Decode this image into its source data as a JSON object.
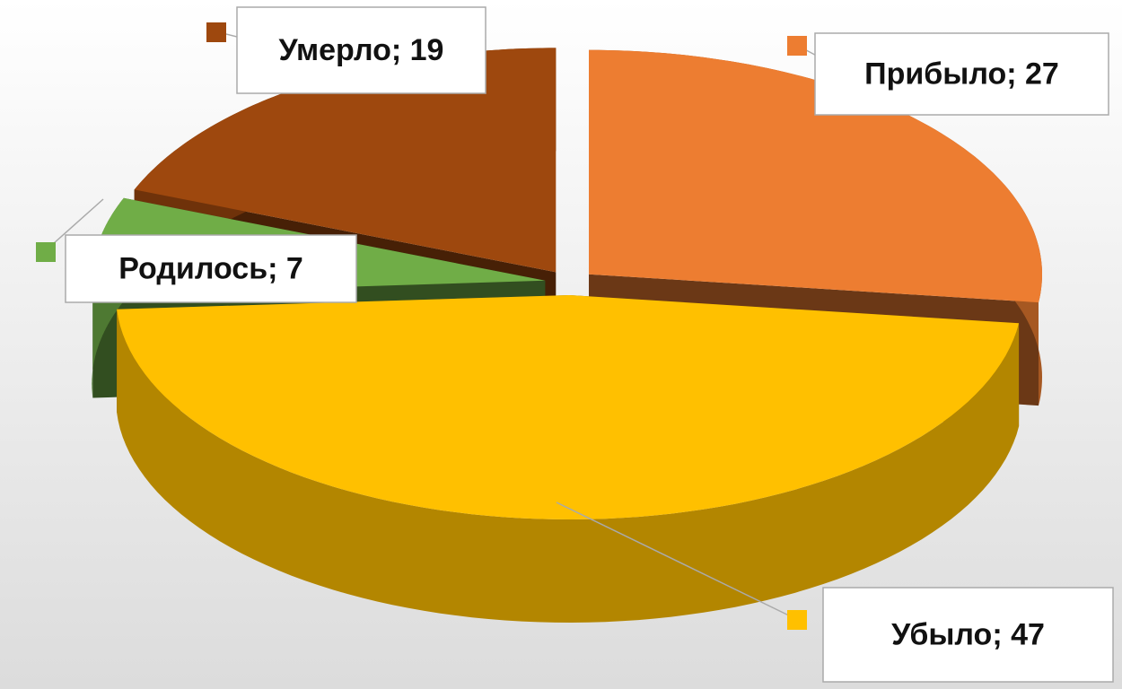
{
  "chart_data": {
    "type": "pie3d",
    "categories": [
      "Прибыло",
      "Убыло",
      "Родилось",
      "Умерло"
    ],
    "values": [
      27,
      47,
      7,
      19
    ],
    "value_labels": [
      "Прибыло; 27",
      "Убыло; 47",
      "Родилось; 7",
      "Умерло; 19"
    ],
    "colors": [
      "#ed7d31",
      "#ffc000",
      "#70ad47",
      "#9e480e"
    ]
  }
}
